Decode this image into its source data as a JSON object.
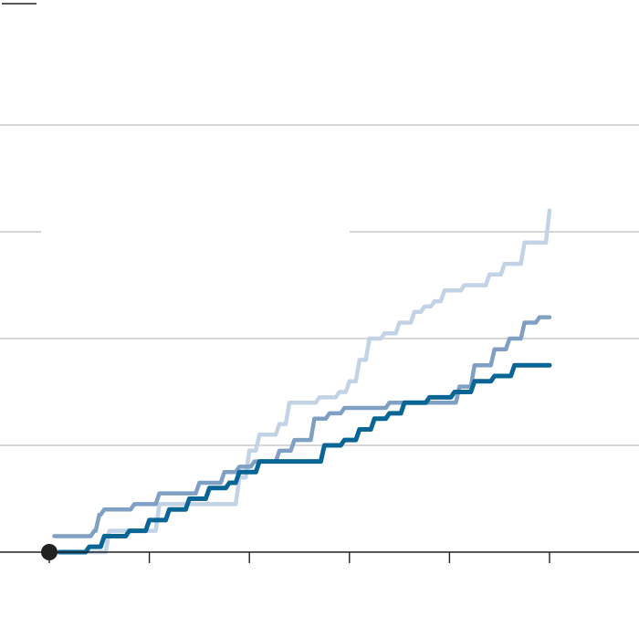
{
  "chart_data": {
    "type": "line",
    "title": "",
    "xlabel": "",
    "ylabel": "",
    "xlim": [
      0,
      5.9
    ],
    "ylim": [
      0,
      5
    ],
    "x_ticks": [
      0,
      1,
      2,
      3,
      4,
      5
    ],
    "y_gridlines": [
      1,
      2,
      3,
      4
    ],
    "grid": true,
    "legend": "none",
    "start_marker": {
      "x": 0,
      "y": 0,
      "color": "#222222"
    },
    "series": [
      {
        "color": "#c3d3e6",
        "values": [
          [
            0.05,
            0.0
          ],
          [
            0.6,
            0.2
          ],
          [
            1.1,
            0.45
          ],
          [
            1.3,
            0.45
          ],
          [
            1.9,
            0.7
          ],
          [
            2.0,
            0.95
          ],
          [
            2.1,
            1.1
          ],
          [
            2.2,
            1.1
          ],
          [
            2.3,
            1.2
          ],
          [
            2.4,
            1.4
          ],
          [
            2.5,
            1.4
          ],
          [
            2.6,
            1.4
          ],
          [
            2.7,
            1.45
          ],
          [
            2.9,
            1.5
          ],
          [
            3.0,
            1.6
          ],
          [
            3.1,
            1.8
          ],
          [
            3.2,
            2.0
          ],
          [
            3.35,
            2.05
          ],
          [
            3.5,
            2.15
          ],
          [
            3.65,
            2.25
          ],
          [
            3.75,
            2.3
          ],
          [
            3.85,
            2.35
          ],
          [
            3.95,
            2.45
          ],
          [
            4.15,
            2.5
          ],
          [
            4.4,
            2.6
          ],
          [
            4.55,
            2.7
          ],
          [
            4.75,
            2.9
          ],
          [
            5.0,
            3.2
          ]
        ]
      },
      {
        "color": "#7f9fc4",
        "values": [
          [
            0.05,
            0.15
          ],
          [
            0.25,
            0.15
          ],
          [
            0.45,
            0.2
          ],
          [
            0.5,
            0.35
          ],
          [
            0.55,
            0.4
          ],
          [
            0.85,
            0.45
          ],
          [
            1.1,
            0.55
          ],
          [
            1.3,
            0.55
          ],
          [
            1.5,
            0.65
          ],
          [
            1.75,
            0.75
          ],
          [
            1.9,
            0.8
          ],
          [
            2.05,
            0.85
          ],
          [
            2.3,
            0.95
          ],
          [
            2.45,
            1.05
          ],
          [
            2.65,
            1.25
          ],
          [
            2.8,
            1.3
          ],
          [
            2.95,
            1.35
          ],
          [
            3.2,
            1.35
          ],
          [
            3.4,
            1.4
          ],
          [
            3.7,
            1.4
          ],
          [
            3.9,
            1.4
          ],
          [
            4.1,
            1.55
          ],
          [
            4.25,
            1.75
          ],
          [
            4.45,
            1.9
          ],
          [
            4.6,
            2.0
          ],
          [
            4.75,
            2.15
          ],
          [
            4.9,
            2.2
          ],
          [
            5.0,
            2.2
          ]
        ]
      },
      {
        "color": "#0a6597",
        "values": [
          [
            0.1,
            0.0
          ],
          [
            0.4,
            0.05
          ],
          [
            0.55,
            0.15
          ],
          [
            0.8,
            0.2
          ],
          [
            1.0,
            0.3
          ],
          [
            1.2,
            0.4
          ],
          [
            1.4,
            0.5
          ],
          [
            1.6,
            0.6
          ],
          [
            1.8,
            0.65
          ],
          [
            1.9,
            0.75
          ],
          [
            2.1,
            0.85
          ],
          [
            2.3,
            0.85
          ],
          [
            2.6,
            0.85
          ],
          [
            2.75,
            1.0
          ],
          [
            2.95,
            1.05
          ],
          [
            3.1,
            1.15
          ],
          [
            3.25,
            1.25
          ],
          [
            3.4,
            1.3
          ],
          [
            3.55,
            1.4
          ],
          [
            3.8,
            1.45
          ],
          [
            4.05,
            1.5
          ],
          [
            4.25,
            1.6
          ],
          [
            4.45,
            1.65
          ],
          [
            4.65,
            1.75
          ],
          [
            4.8,
            1.75
          ],
          [
            5.0,
            1.75
          ]
        ]
      }
    ]
  }
}
